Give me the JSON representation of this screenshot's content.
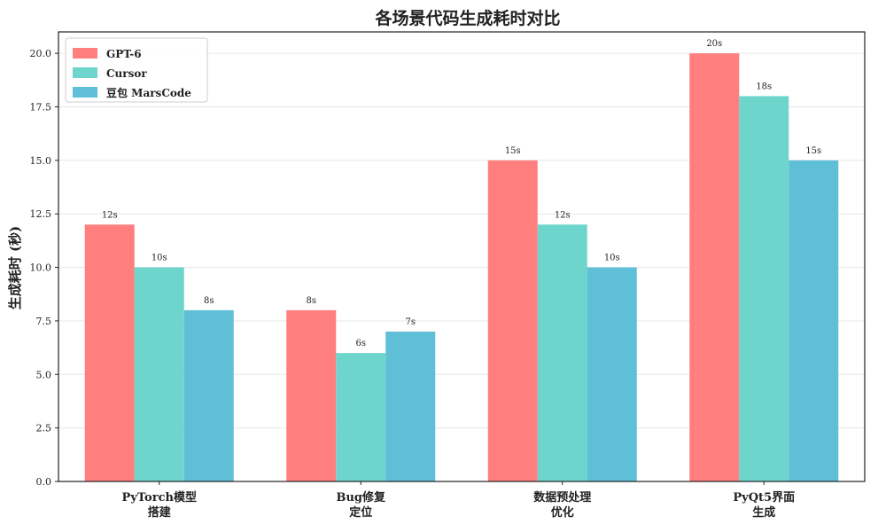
{
  "chart_data": {
    "type": "bar",
    "title": "各场景代码生成耗时对比",
    "ylabel": "生成耗时 (秒)",
    "xlabel": "",
    "ylim": [
      0,
      21
    ],
    "yticks": [
      "0.0",
      "2.5",
      "5.0",
      "7.5",
      "10.0",
      "12.5",
      "15.0",
      "17.5",
      "20.0"
    ],
    "ytick_values": [
      0,
      2.5,
      5,
      7.5,
      10,
      12.5,
      15,
      17.5,
      20
    ],
    "grid": "horizontal",
    "legend_position": "top-left",
    "categories": [
      [
        "PyTorch模型",
        "搭建"
      ],
      [
        "Bug修复",
        "定位"
      ],
      [
        "数据预处理",
        "优化"
      ],
      [
        "PyQt5界面",
        "生成"
      ]
    ],
    "series": [
      {
        "name": "GPT-6",
        "color": "#FF7F7F",
        "values": [
          12,
          8,
          15,
          20
        ],
        "labels": [
          "12s",
          "8s",
          "15s",
          "20s"
        ]
      },
      {
        "name": "Cursor",
        "color": "#6DD5CC",
        "values": [
          10,
          6,
          12,
          18
        ],
        "labels": [
          "10s",
          "6s",
          "12s",
          "18s"
        ]
      },
      {
        "name": "豆包 MarsCode",
        "color": "#5FBFD6",
        "values": [
          8,
          7,
          10,
          15
        ],
        "labels": [
          "8s",
          "7s",
          "10s",
          "15s"
        ]
      }
    ]
  }
}
